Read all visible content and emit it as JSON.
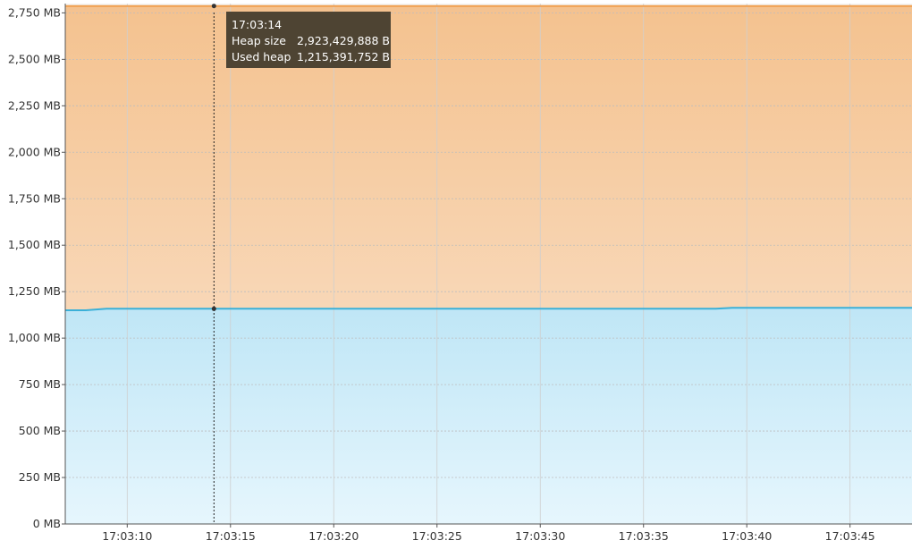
{
  "chart_data": {
    "type": "area",
    "title": "",
    "xlabel": "",
    "ylabel": "",
    "ylim": [
      0,
      2800
    ],
    "y_unit": "MB",
    "y_tick_labels": [
      "0 MB",
      "250 MB",
      "500 MB",
      "750 MB",
      "1,000 MB",
      "1,250 MB",
      "1,500 MB",
      "1,750 MB",
      "2,000 MB",
      "2,250 MB",
      "2,500 MB",
      "2,750 MB"
    ],
    "y_ticks": [
      0,
      250,
      500,
      750,
      1000,
      1250,
      1500,
      1750,
      2000,
      2250,
      2500,
      2750
    ],
    "x_tick_labels": [
      "17:03:10",
      "17:03:15",
      "17:03:20",
      "17:03:25",
      "17:03:30",
      "17:03:35",
      "17:03:40",
      "17:03:45"
    ],
    "x_ticks_seconds": [
      10,
      15,
      20,
      25,
      30,
      35,
      40,
      45
    ],
    "xlim_seconds": [
      7,
      48
    ],
    "grid": true,
    "series": [
      {
        "id": "heap",
        "color": "#f0a050",
        "x_seconds": [
          7,
          48
        ],
        "values": [
          2787,
          2787
        ]
      },
      {
        "id": "used",
        "color": "#3ab0d8",
        "x_seconds": [
          7,
          8,
          9,
          14,
          20,
          30,
          38.5,
          39.3,
          48
        ],
        "values": [
          1150,
          1150,
          1158,
          1158,
          1158,
          1158,
          1158,
          1163,
          1163
        ]
      }
    ],
    "crosshair_seconds": 14.2
  },
  "tooltip": {
    "time": "17:03:14",
    "rows": [
      {
        "label": "Heap size",
        "value": "2,923,429,888 B"
      },
      {
        "label": "Used heap",
        "value": "1,215,391,752 B"
      }
    ]
  }
}
